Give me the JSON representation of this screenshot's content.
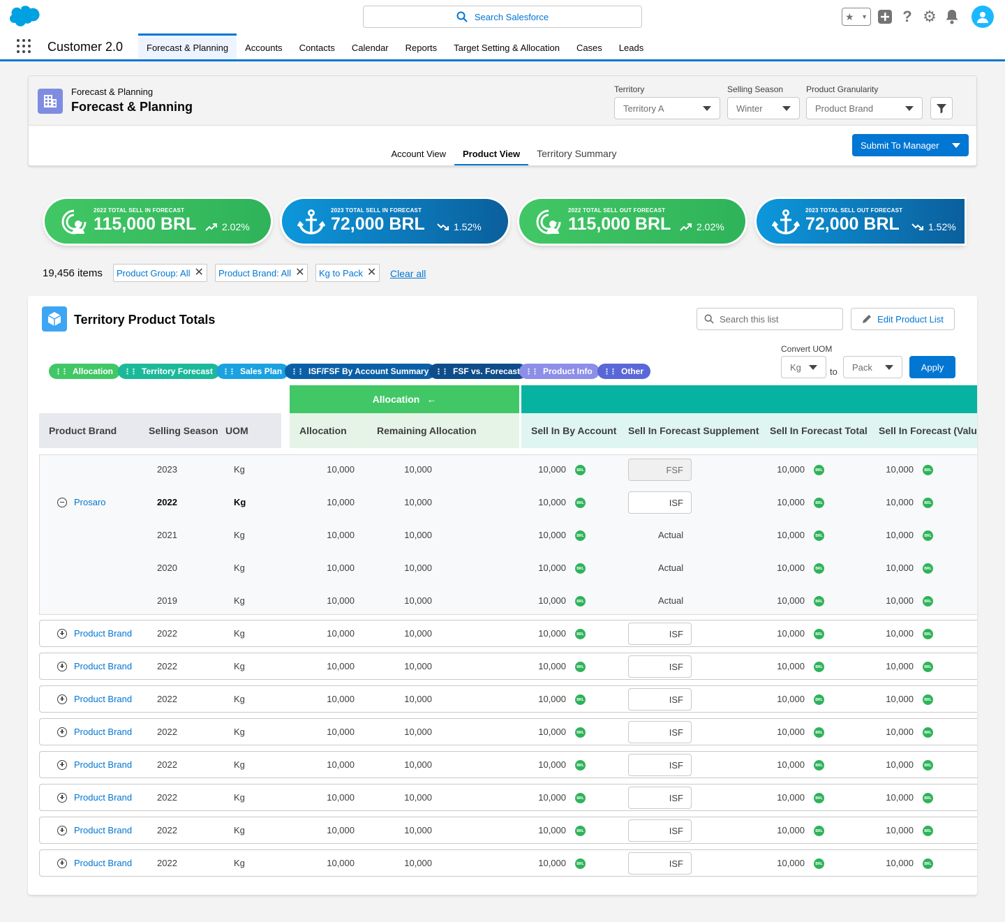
{
  "global": {
    "search_placeholder": "Search Salesforce"
  },
  "nav": {
    "app_name": "Customer 2.0",
    "items": [
      {
        "label": "Forecast & Planning",
        "active": true
      },
      {
        "label": "Accounts"
      },
      {
        "label": "Contacts"
      },
      {
        "label": "Calendar"
      },
      {
        "label": "Reports"
      },
      {
        "label": "Target Setting & Allocation"
      },
      {
        "label": "Cases"
      },
      {
        "label": "Leads"
      }
    ]
  },
  "page_header": {
    "breadcrumb": "Forecast & Planning",
    "title": "Forecast & Planning",
    "filters": {
      "territory_label": "Territory",
      "territory_value": "Territory A",
      "season_label": "Selling Season",
      "season_value": "Winter",
      "granularity_label": "Product Granularity",
      "granularity_value": "Product Brand"
    },
    "tabs": [
      "Account View",
      "Product View",
      "Territory Summary"
    ],
    "active_tab": "Product View",
    "submit_label": "Submit To Manager"
  },
  "kpis": [
    {
      "label": "2022 TOTAL SELL IN FORECAST",
      "value": "115,000 BRL",
      "delta": "2.02%",
      "trend": "up",
      "color": "green"
    },
    {
      "label": "2023 TOTAL SELL IN FORECAST",
      "value": "72,000 BRL",
      "delta": "1.52%",
      "trend": "down",
      "color": "blue"
    },
    {
      "label": "2022 TOTAL SELL OUT FORECAST",
      "value": "115,000 BRL",
      "delta": "2.02%",
      "trend": "up",
      "color": "green"
    },
    {
      "label": "2023 TOTAL SELL OUT FORECAST",
      "value": "72,000 BRL",
      "delta": "1.52%",
      "trend": "down",
      "color": "blue"
    }
  ],
  "filter_bar": {
    "items_count": "19,456 items",
    "pills": [
      "Product Group: All",
      "Product Brand: All",
      "Kg to Pack"
    ],
    "clear_all": "Clear all"
  },
  "card": {
    "title": "Territory Product Totals",
    "search_placeholder": "Search this list",
    "edit_label": "Edit Product List",
    "convert_uom_label": "Convert UOM",
    "uom_from": "Kg",
    "uom_to_label": "to",
    "uom_to": "Pack",
    "apply_label": "Apply",
    "chips": [
      {
        "label": "Allocation",
        "color": "#41c765"
      },
      {
        "label": "Territory Forecast",
        "color": "#1bb99a"
      },
      {
        "label": "Sales Plan",
        "color": "#1aa2e0"
      },
      {
        "label": "ISF/FSF By Account Summary",
        "color": "#0b5fa6"
      },
      {
        "label": "FSF vs. Forecast",
        "color": "#0f4c8a"
      },
      {
        "label": "Product Info",
        "color": "#8c8ee8"
      },
      {
        "label": "Other",
        "color": "#5a67d8"
      }
    ]
  },
  "table": {
    "group_header": "Allocation",
    "columns": {
      "brand": "Product Brand",
      "season": "Selling Season",
      "uom": "UOM",
      "allocation": "Allocation",
      "remaining": "Remaining Allocation",
      "sell_in_account": "Sell In By Account",
      "supplement": "Sell In Forecast Supplement",
      "total": "Sell In Forecast Total",
      "value": "Sell In Forecast (Valu"
    },
    "currency_badge": "BRL",
    "expanded_group": {
      "brand": "Prosaro",
      "rows": [
        {
          "season": "2023",
          "uom": "Kg",
          "allocation": "10,000",
          "remaining": "10,000",
          "sell_in": "10,000",
          "supplement": "FSF",
          "supplement_type": "disabled",
          "total": "10,000",
          "value": "10,000",
          "bold": false
        },
        {
          "season": "2022",
          "uom": "Kg",
          "allocation": "10,000",
          "remaining": "10,000",
          "sell_in": "10,000",
          "supplement": "ISF",
          "supplement_type": "input",
          "total": "10,000",
          "value": "10,000",
          "bold": true
        },
        {
          "season": "2021",
          "uom": "Kg",
          "allocation": "10,000",
          "remaining": "10,000",
          "sell_in": "10,000",
          "supplement": "Actual",
          "supplement_type": "text",
          "total": "10,000",
          "value": "10,000",
          "bold": false
        },
        {
          "season": "2020",
          "uom": "Kg",
          "allocation": "10,000",
          "remaining": "10,000",
          "sell_in": "10,000",
          "supplement": "Actual",
          "supplement_type": "text",
          "total": "10,000",
          "value": "10,000",
          "bold": false
        },
        {
          "season": "2019",
          "uom": "Kg",
          "allocation": "10,000",
          "remaining": "10,000",
          "sell_in": "10,000",
          "supplement": "Actual",
          "supplement_type": "text",
          "total": "10,000",
          "value": "10,000",
          "bold": false
        }
      ]
    },
    "collapsed_rows": [
      {
        "brand": "Product Brand",
        "season": "2022",
        "uom": "Kg",
        "allocation": "10,000",
        "remaining": "10,000",
        "sell_in": "10,000",
        "supplement": "ISF",
        "total": "10,000",
        "value": "10,000"
      },
      {
        "brand": "Product Brand",
        "season": "2022",
        "uom": "Kg",
        "allocation": "10,000",
        "remaining": "10,000",
        "sell_in": "10,000",
        "supplement": "ISF",
        "total": "10,000",
        "value": "10,000"
      },
      {
        "brand": "Product Brand",
        "season": "2022",
        "uom": "Kg",
        "allocation": "10,000",
        "remaining": "10,000",
        "sell_in": "10,000",
        "supplement": "ISF",
        "total": "10,000",
        "value": "10,000"
      },
      {
        "brand": "Product Brand",
        "season": "2022",
        "uom": "Kg",
        "allocation": "10,000",
        "remaining": "10,000",
        "sell_in": "10,000",
        "supplement": "ISF",
        "total": "10,000",
        "value": "10,000"
      },
      {
        "brand": "Product Brand",
        "season": "2022",
        "uom": "Kg",
        "allocation": "10,000",
        "remaining": "10,000",
        "sell_in": "10,000",
        "supplement": "ISF",
        "total": "10,000",
        "value": "10,000"
      },
      {
        "brand": "Product Brand",
        "season": "2022",
        "uom": "Kg",
        "allocation": "10,000",
        "remaining": "10,000",
        "sell_in": "10,000",
        "supplement": "ISF",
        "total": "10,000",
        "value": "10,000"
      },
      {
        "brand": "Product Brand",
        "season": "2022",
        "uom": "Kg",
        "allocation": "10,000",
        "remaining": "10,000",
        "sell_in": "10,000",
        "supplement": "ISF",
        "total": "10,000",
        "value": "10,000"
      },
      {
        "brand": "Product Brand",
        "season": "2022",
        "uom": "Kg",
        "allocation": "10,000",
        "remaining": "10,000",
        "sell_in": "10,000",
        "supplement": "ISF",
        "total": "10,000",
        "value": "10,000"
      }
    ]
  },
  "colors": {
    "brand": "#0176d3",
    "green": "#41c765",
    "teal": "#06b3a0"
  }
}
